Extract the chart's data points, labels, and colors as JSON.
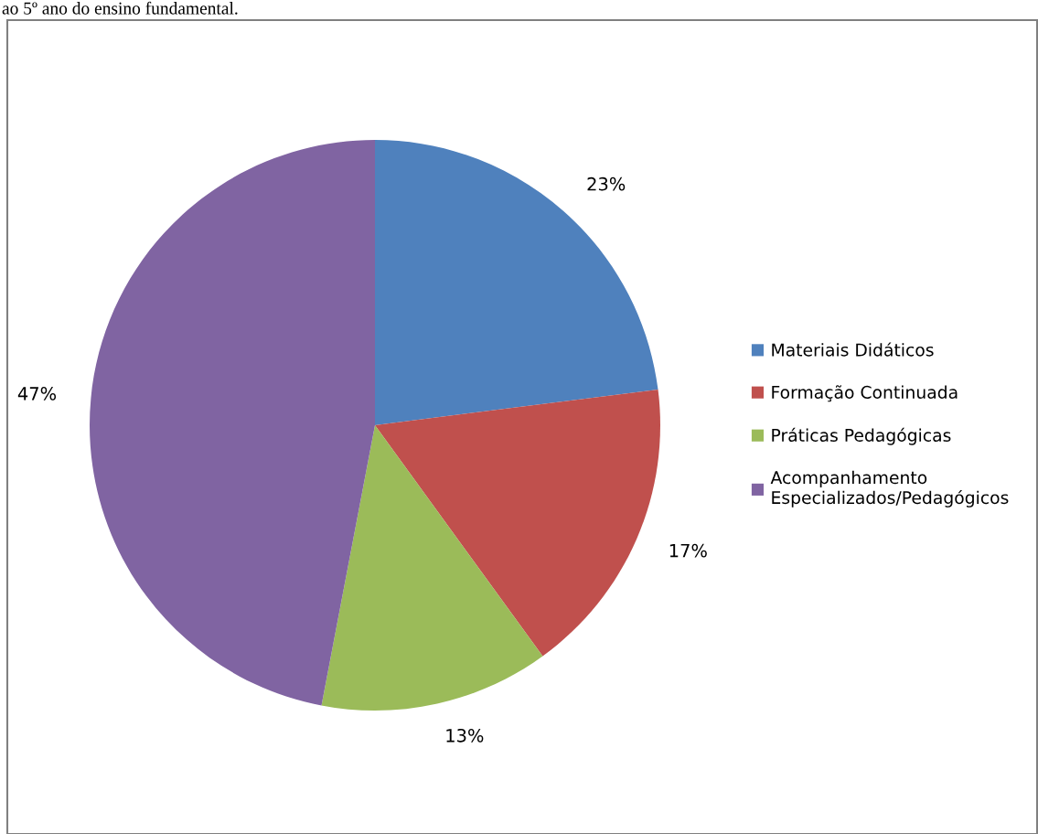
{
  "chart_data": {
    "type": "pie",
    "categories": [
      "Materiais Didáticos",
      "Formação Continuada",
      "Práticas Pedagógicas",
      "Acompanhamento\nEspecializados/Pedagógicos"
    ],
    "values": [
      23,
      17,
      13,
      47
    ],
    "value_labels": [
      "23%",
      "17%",
      "13%",
      "47%"
    ],
    "colors": [
      "#4f81bd",
      "#c0504d",
      "#9bbb59",
      "#8064a2"
    ],
    "legend": "right",
    "annotations": [
      "ao 5º ano do ensino fundamental."
    ]
  }
}
